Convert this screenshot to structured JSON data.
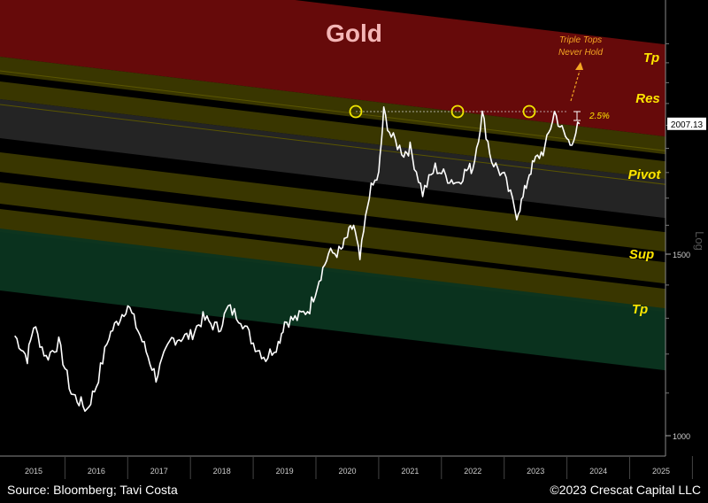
{
  "chart_data": {
    "type": "line",
    "title": "Gold",
    "y_scale": "log",
    "ylim": [
      950,
      2500
    ],
    "y_ticks": [
      {
        "value": 1000,
        "label": "1000"
      },
      {
        "value": 1500,
        "label": "1500"
      }
    ],
    "y_axis_label": "Log",
    "last_value_label": "2007.13",
    "x_ticks": [
      "2015",
      "2016",
      "2017",
      "2018",
      "2019",
      "2020",
      "2021",
      "2022",
      "2023",
      "2024",
      "2025"
    ],
    "series": [
      {
        "x": [
          2014.7,
          2014.9,
          2015.0,
          2015.2,
          2015.4,
          2015.6,
          2015.85,
          2016.0,
          2016.2,
          2016.5,
          2016.7,
          2016.95,
          2017.2,
          2017.5,
          2017.7,
          2017.95,
          2018.1,
          2018.3,
          2018.5,
          2018.7,
          2018.9,
          2019.0,
          2019.2,
          2019.4,
          2019.55,
          2019.7,
          2019.9,
          2020.0,
          2020.1,
          2020.2,
          2020.35,
          2020.5,
          2020.58,
          2020.7,
          2020.9,
          2021.0,
          2021.2,
          2021.4,
          2021.6,
          2021.75,
          2021.9,
          2022.0,
          2022.15,
          2022.3,
          2022.5,
          2022.7,
          2022.8,
          2022.9,
          2023.0,
          2023.15,
          2023.3,
          2023.45,
          2023.55,
          2023.7
        ],
        "y": [
          1250,
          1190,
          1280,
          1190,
          1230,
          1100,
          1060,
          1120,
          1250,
          1340,
          1250,
          1140,
          1240,
          1250,
          1300,
          1270,
          1330,
          1300,
          1230,
          1190,
          1230,
          1290,
          1300,
          1330,
          1420,
          1500,
          1510,
          1560,
          1600,
          1480,
          1720,
          1790,
          2060,
          1950,
          1880,
          1900,
          1720,
          1820,
          1780,
          1760,
          1810,
          1820,
          2050,
          1850,
          1780,
          1640,
          1700,
          1800,
          1850,
          1900,
          2060,
          1960,
          1920,
          2007
        ]
      }
    ],
    "zones": [
      {
        "label": "Tp",
        "color": "#7a0b0b"
      },
      {
        "label": "Res",
        "color": "#4a4400"
      },
      {
        "label": "Pivot",
        "color": "#2b2b2b"
      },
      {
        "label": "Sup",
        "color": "#4a4400"
      },
      {
        "label": "Tp",
        "color": "#0b3a20"
      }
    ],
    "annotations": {
      "triple_tops_line1": "Triple Tops",
      "triple_tops_line2": "Never Hold",
      "gap": "2.5%"
    }
  },
  "footer": {
    "source": "Source: Bloomberg; Tavi Costa",
    "copyright": "©2023 Crescat Capital LLC"
  },
  "colors": {
    "background": "#000000",
    "line": "#ffffff",
    "title": "#f4b6b6",
    "label": "#ffe600",
    "annotation": "#f5a623",
    "circle": "#f2e600"
  }
}
